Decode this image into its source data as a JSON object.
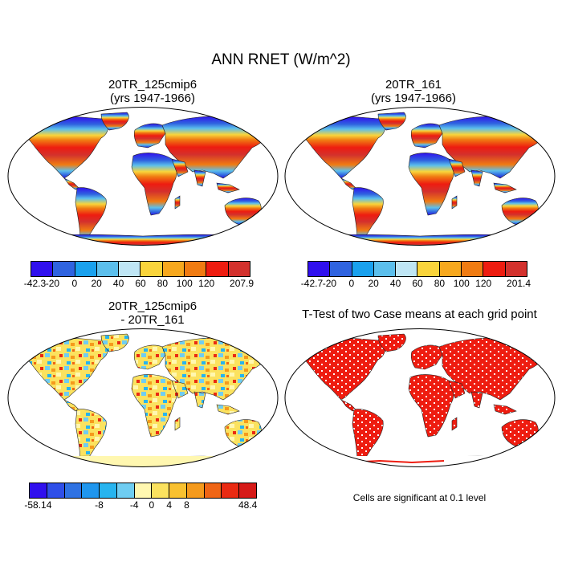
{
  "title": "ANN RNET (W/m^2)",
  "panels": [
    {
      "title_line1": "20TR_125cmip6",
      "title_line2": "(yrs 1947-1966)"
    },
    {
      "title_line1": "20TR_161",
      "title_line2": "(yrs 1947-1966)"
    },
    {
      "title_line1": "20TR_125cmip6",
      "title_line2": "- 20TR_161"
    },
    {
      "title_line1": "T-Test of two Case means at each grid point",
      "title_line2": ""
    }
  ],
  "colorbars": [
    {
      "colors": [
        "#3010ee",
        "#2f63e0",
        "#1aa1ee",
        "#5cbfec",
        "#bfe6f5",
        "#f9d43b",
        "#f7a81e",
        "#f07b12",
        "#ee1c10",
        "#d3312d"
      ],
      "labels": [
        "-42.3",
        "-20",
        "0",
        "20",
        "40",
        "60",
        "80",
        "100",
        "120",
        "207.9"
      ]
    },
    {
      "colors": [
        "#3010ee",
        "#2f63e0",
        "#1aa1ee",
        "#5cbfec",
        "#bfe6f5",
        "#f9d43b",
        "#f7a81e",
        "#f07b12",
        "#ee1c10",
        "#d3312d"
      ],
      "labels": [
        "-42.7",
        "-20",
        "0",
        "20",
        "40",
        "60",
        "80",
        "100",
        "120",
        "201.4"
      ]
    },
    {
      "colors": [
        "#3010ee",
        "#2f4fe8",
        "#2f72e3",
        "#1f96ee",
        "#27b4ef",
        "#6fcdf2",
        "#fff7b0",
        "#fbe25f",
        "#f9c130",
        "#f59a1c",
        "#ef6515",
        "#ea2a12",
        "#d61a18"
      ],
      "labels": [
        "-58.14",
        "-8",
        "-4",
        "0",
        "4",
        "8",
        "48.4"
      ]
    }
  ],
  "significance_note": "Cells are significant at 0.1 level"
}
